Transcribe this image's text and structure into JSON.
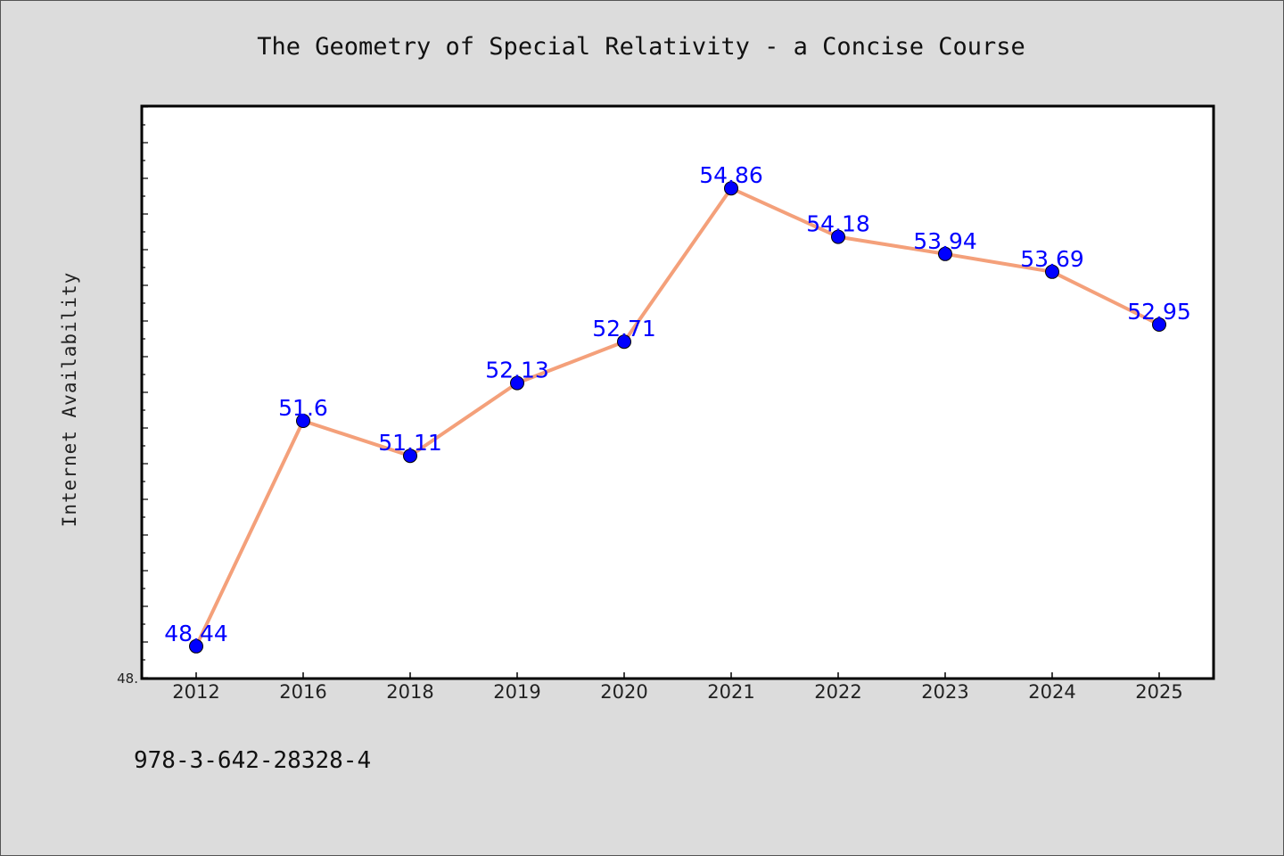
{
  "chart_data": {
    "type": "line",
    "title": "The Geometry of Special Relativity - a Concise Course",
    "xlabel": "",
    "ylabel": "Internet Availability",
    "categories": [
      "2012",
      "2016",
      "2018",
      "2019",
      "2020",
      "2021",
      "2022",
      "2023",
      "2024",
      "2025"
    ],
    "series": [
      {
        "values": [
          48.44,
          51.6,
          51.11,
          52.13,
          52.71,
          54.86,
          54.18,
          53.94,
          53.69,
          52.95
        ],
        "data_labels": [
          "48.44",
          "51.6",
          "51.11",
          "52.13",
          "52.71",
          "54.86",
          "54.18",
          "53.94",
          "53.69",
          "52.95"
        ]
      }
    ],
    "ylim": [
      48.0,
      56.0
    ],
    "y_tick_label": "48.",
    "grid": false,
    "line_color": "#f4a07a",
    "marker_color": "#0000ff",
    "label_color": "#0000ff"
  },
  "footer": {
    "isbn": "978-3-642-28328-4"
  }
}
